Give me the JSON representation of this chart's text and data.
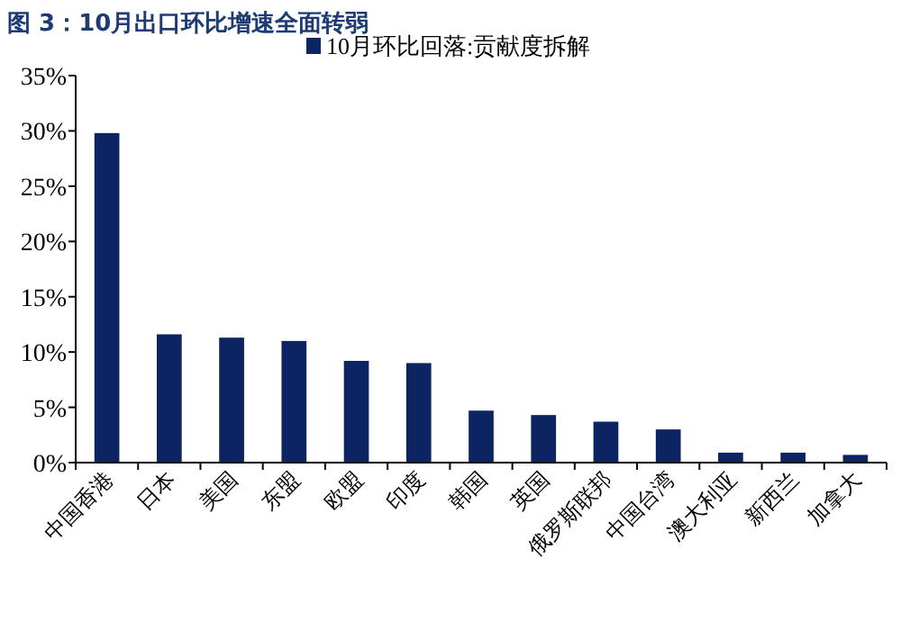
{
  "chart_data": {
    "type": "bar",
    "title": "图 3：10月出口环比增速全面转弱",
    "categories": [
      "中国香港",
      "日本",
      "美国",
      "东盟",
      "欧盟",
      "印度",
      "韩国",
      "英国",
      "俄罗斯联邦",
      "中国台湾",
      "澳大利亚",
      "新西兰",
      "加拿大"
    ],
    "series": [
      {
        "name": "10月环比回落:贡献度拆解",
        "color": "#0c2461",
        "values": [
          29.8,
          11.6,
          11.3,
          11.0,
          9.2,
          9.0,
          4.7,
          4.3,
          3.7,
          3.0,
          0.9,
          0.9,
          0.7
        ]
      }
    ],
    "ylim": [
      0,
      35
    ],
    "yticks": [
      {
        "value": 0,
        "label": "0%"
      },
      {
        "value": 5,
        "label": "5%"
      },
      {
        "value": 10,
        "label": "10%"
      },
      {
        "value": 15,
        "label": "15%"
      },
      {
        "value": 20,
        "label": "20%"
      },
      {
        "value": 25,
        "label": "25%"
      },
      {
        "value": 30,
        "label": "30%"
      },
      {
        "value": 35,
        "label": "35%"
      }
    ],
    "grid": false,
    "legend": "top"
  }
}
